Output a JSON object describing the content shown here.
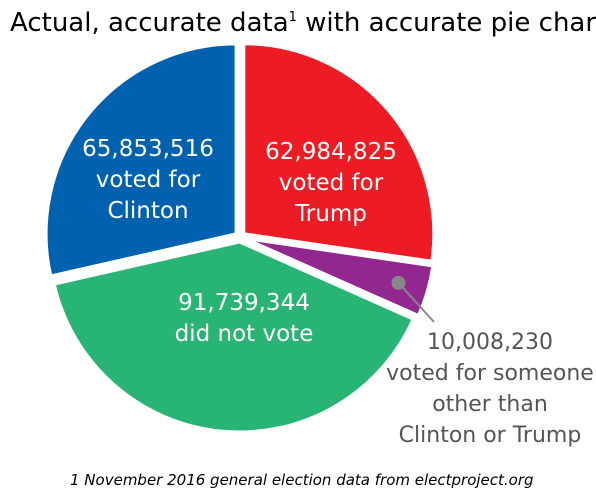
{
  "chart_data": {
    "type": "pie",
    "title": "Actual, accurate data",
    "title_footnote_mark": "1",
    "title_suffix": " with accurate pie chart",
    "start": "12 o'clock",
    "direction": "clockwise",
    "explode": "all slices slightly separated",
    "series": [
      {
        "key": "trump",
        "value": 62984825,
        "value_label": "62,984,825",
        "label_lines": [
          "voted for",
          "Trump"
        ],
        "color": "#ed1c24"
      },
      {
        "key": "other",
        "value": 10008230,
        "value_label": "10,008,230",
        "label_lines": [
          "voted for someone",
          "other than",
          "Clinton or Trump"
        ],
        "color": "#92278f",
        "callout": true
      },
      {
        "key": "nonvoters",
        "value": 91739344,
        "value_label": "91,739,344",
        "label_lines": [
          "did not vote"
        ],
        "color": "#28b473"
      },
      {
        "key": "clinton",
        "value": 65853516,
        "value_label": "65,853,516",
        "label_lines": [
          "voted for",
          "Clinton"
        ],
        "color": "#0061ae"
      }
    ],
    "callout_color": "#888888",
    "footnote": "1 November 2016 general election data from electproject.org"
  }
}
